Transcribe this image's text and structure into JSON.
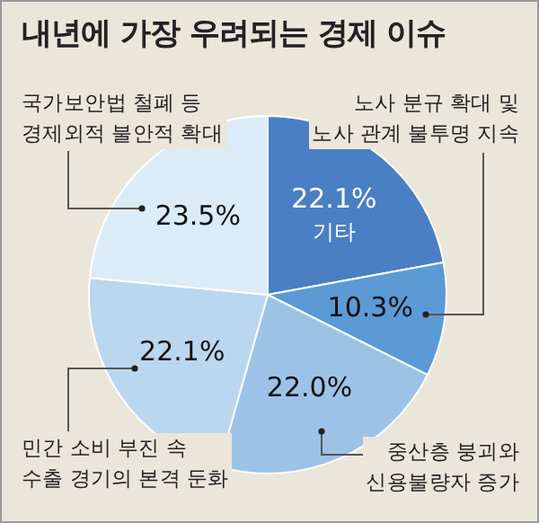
{
  "chart_data": {
    "type": "pie",
    "title": "내년에 가장 우려되는 경제 이슈",
    "categories": [
      "기타",
      "노사 분규 확대 및\n노사 관계 불투명 지속",
      "중산층 붕괴와\n신용불량자 증가",
      "민간 소비 부진 속\n수출 경기의 본격 둔화",
      "국가보안법 철폐 등\n경제외적 불안적 확대"
    ],
    "values": [
      22.1,
      10.3,
      22.0,
      22.1,
      23.5
    ],
    "colors": [
      "#4a7fc4",
      "#5c9ad6",
      "#9cc3e7",
      "#bbd6ef",
      "#dcebf8"
    ],
    "value_labels": [
      "22.1%",
      "10.3%",
      "22.0%",
      "22.1%",
      "23.5%"
    ],
    "legend": false
  }
}
